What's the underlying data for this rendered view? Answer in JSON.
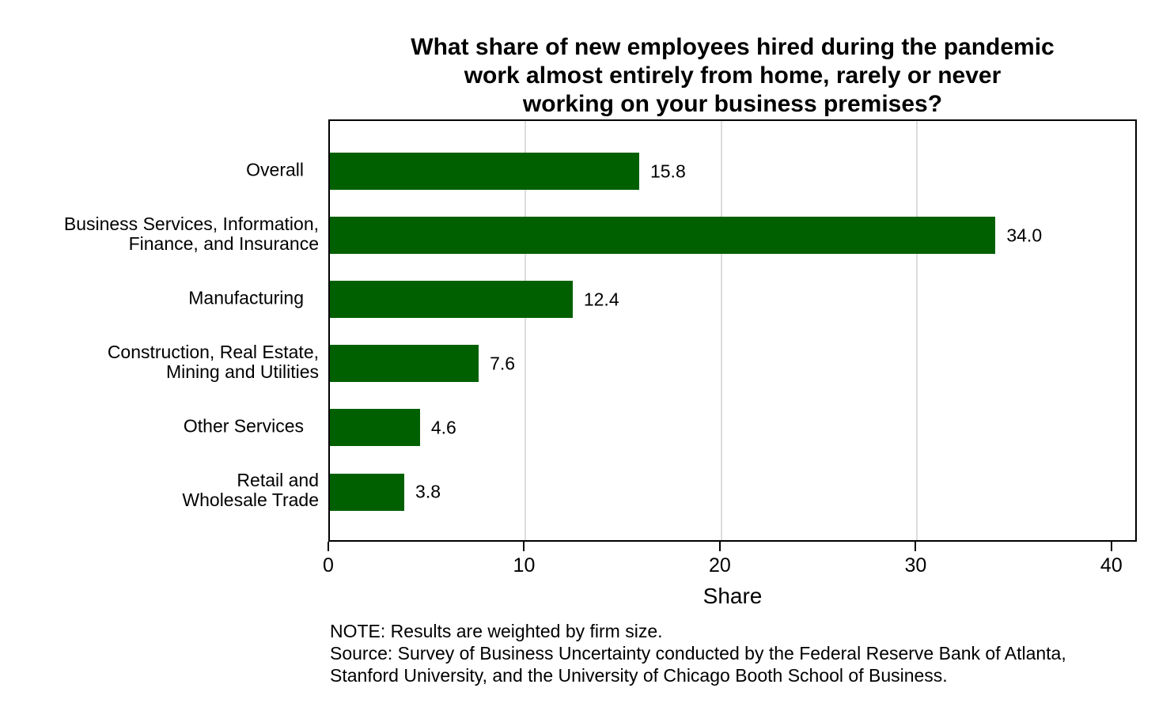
{
  "chart_data": {
    "type": "bar",
    "orientation": "horizontal",
    "title": "What share of new employees hired during the pandemic\nwork almost entirely from home, rarely or never\nworking on your business premises?",
    "categories": [
      "Overall",
      "Business Services, Information,\nFinance, and Insurance",
      "Manufacturing",
      "Construction, Real Estate,\nMining and Utilities",
      "Other Services",
      "Retail and\nWholesale Trade"
    ],
    "values": [
      15.8,
      34.0,
      12.4,
      7.6,
      4.6,
      3.8
    ],
    "xlabel": "Share",
    "x_ticks": [
      0,
      10,
      20,
      30,
      40
    ],
    "xlim": [
      0,
      41.3
    ],
    "gridlines_at": [
      10,
      20,
      30
    ],
    "grid_on": true,
    "legend": "none",
    "bar_color": "#006000",
    "grid_color": "#DCDCDC",
    "axis_color": "#000000",
    "notes": [
      "NOTE: Results are weighted by firm size.",
      "Source: Survey of Business Uncertainty conducted by the Federal Reserve Bank of Atlanta,",
      "Stanford University, and the University of Chicago Booth School of Business."
    ]
  }
}
